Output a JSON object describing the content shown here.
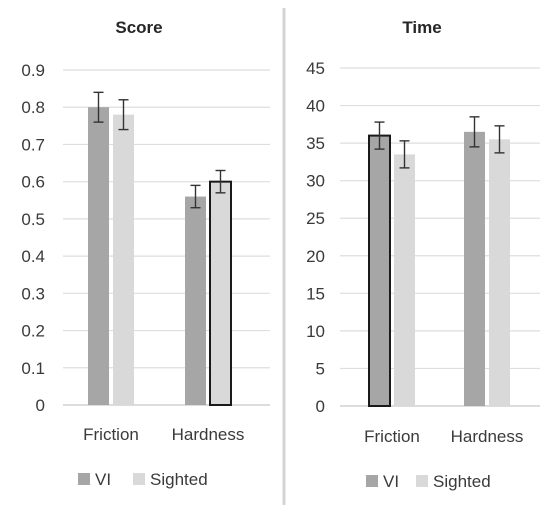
{
  "chart_data": [
    {
      "type": "bar",
      "title": "Score",
      "categories": [
        "Friction",
        "Hardness"
      ],
      "series": [
        {
          "name": "VI",
          "values": [
            0.8,
            0.56
          ],
          "errors": [
            0.04,
            0.03
          ],
          "color": "#a6a6a6"
        },
        {
          "name": "Sighted",
          "values": [
            0.78,
            0.6
          ],
          "errors": [
            0.04,
            0.03
          ],
          "color": "#d9d9d9"
        }
      ],
      "ylim": [
        0,
        0.9
      ],
      "yticks": [
        "0",
        "0.1",
        "0.2",
        "0.3",
        "0.4",
        "0.5",
        "0.6",
        "0.7",
        "0.8",
        "0.9"
      ],
      "grid": true,
      "legend": "bottom",
      "xlabel": "",
      "ylabel": ""
    },
    {
      "type": "bar",
      "title": "Time",
      "categories": [
        "Friction",
        "Hardness"
      ],
      "series": [
        {
          "name": "VI",
          "values": [
            36,
            36.5
          ],
          "errors": [
            1.8,
            2.0
          ],
          "color": "#a6a6a6"
        },
        {
          "name": "Sighted",
          "values": [
            33.5,
            35.5
          ],
          "errors": [
            1.8,
            1.8
          ],
          "color": "#d9d9d9"
        }
      ],
      "ylim": [
        0,
        45
      ],
      "yticks": [
        "0",
        "5",
        "10",
        "15",
        "20",
        "25",
        "30",
        "35",
        "40",
        "45"
      ],
      "grid": true,
      "legend": "bottom",
      "xlabel": "",
      "ylabel": ""
    }
  ]
}
